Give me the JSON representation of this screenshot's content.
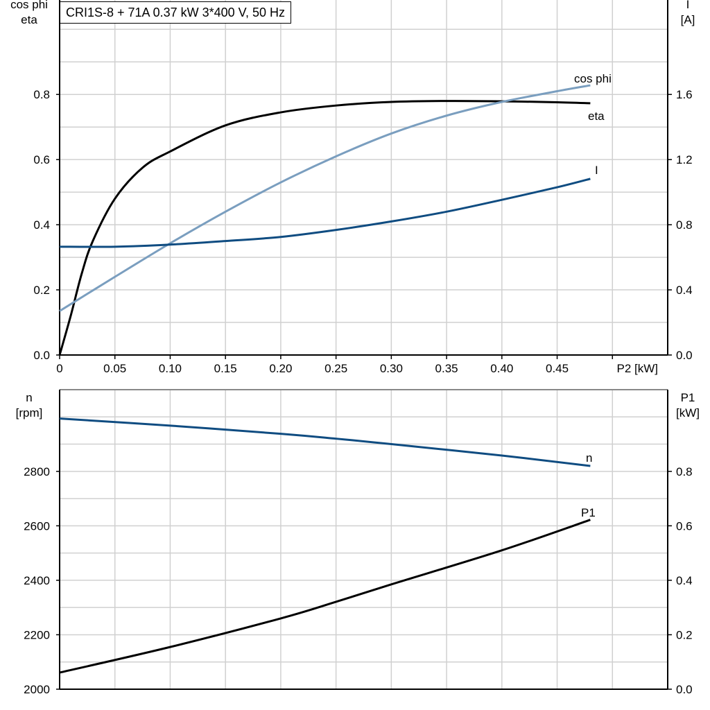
{
  "title": "CRI1S-8 + 71A   0.37 kW   3*400 V, 50 Hz",
  "chart_data": [
    {
      "type": "line",
      "xlabel": "P2 [kW]",
      "ylabel_left": [
        "cos phi",
        "eta"
      ],
      "ylabel_right": [
        "I",
        "[A]"
      ],
      "xlim": [
        0,
        0.55
      ],
      "ylim_left": [
        0,
        1.09
      ],
      "ylim_right": [
        0,
        2.18
      ],
      "x_ticks": [
        "0",
        "0.05",
        "0.10",
        "0.15",
        "0.20",
        "0.25",
        "0.30",
        "0.35",
        "0.40",
        "0.45"
      ],
      "y_ticks_left": [
        "0.0",
        "0.2",
        "0.4",
        "0.6",
        "0.8"
      ],
      "y_ticks_right": [
        "0.0",
        "0.4",
        "0.8",
        "1.2",
        "1.6"
      ],
      "grid": true,
      "series": [
        {
          "name": "eta",
          "axis": "left",
          "color": "#000000",
          "x": [
            0,
            0.01,
            0.02,
            0.03,
            0.05,
            0.075,
            0.1,
            0.15,
            0.2,
            0.25,
            0.3,
            0.35,
            0.4,
            0.45,
            0.48
          ],
          "y": [
            0,
            0.12,
            0.25,
            0.35,
            0.48,
            0.575,
            0.625,
            0.705,
            0.745,
            0.766,
            0.777,
            0.78,
            0.779,
            0.776,
            0.773
          ]
        },
        {
          "name": "cos phi",
          "axis": "left",
          "color": "#7a9ebf",
          "x": [
            0,
            0.05,
            0.1,
            0.15,
            0.2,
            0.25,
            0.3,
            0.35,
            0.4,
            0.45,
            0.48
          ],
          "y": [
            0.135,
            0.24,
            0.343,
            0.44,
            0.53,
            0.61,
            0.68,
            0.735,
            0.777,
            0.81,
            0.828
          ]
        },
        {
          "name": "I",
          "axis": "right",
          "color": "#0f4c81",
          "x": [
            0,
            0.05,
            0.1,
            0.15,
            0.2,
            0.25,
            0.3,
            0.35,
            0.4,
            0.45,
            0.48
          ],
          "y": [
            0.665,
            0.665,
            0.678,
            0.7,
            0.725,
            0.768,
            0.82,
            0.88,
            0.953,
            1.03,
            1.082
          ]
        }
      ]
    },
    {
      "type": "line",
      "ylabel_left": [
        "n",
        "[rpm]"
      ],
      "ylabel_right": [
        "P1",
        "[kW]"
      ],
      "xlim": [
        0,
        0.55
      ],
      "ylim_left": [
        2000,
        3100
      ],
      "ylim_right": [
        0,
        1.1
      ],
      "y_ticks_left": [
        "2000",
        "2200",
        "2400",
        "2600",
        "2800"
      ],
      "y_ticks_right": [
        "0.0",
        "0.2",
        "0.4",
        "0.6",
        "0.8"
      ],
      "grid": true,
      "series": [
        {
          "name": "n",
          "axis": "left",
          "color": "#0f4c81",
          "x": [
            0,
            0.1,
            0.2,
            0.25,
            0.3,
            0.4,
            0.48
          ],
          "y": [
            2994,
            2968,
            2938,
            2920,
            2900,
            2858,
            2820
          ]
        },
        {
          "name": "P1",
          "axis": "right",
          "color": "#000000",
          "x": [
            0,
            0.1,
            0.2,
            0.25,
            0.3,
            0.4,
            0.48
          ],
          "y": [
            0.061,
            0.155,
            0.26,
            0.321,
            0.385,
            0.51,
            0.622
          ]
        }
      ]
    }
  ]
}
